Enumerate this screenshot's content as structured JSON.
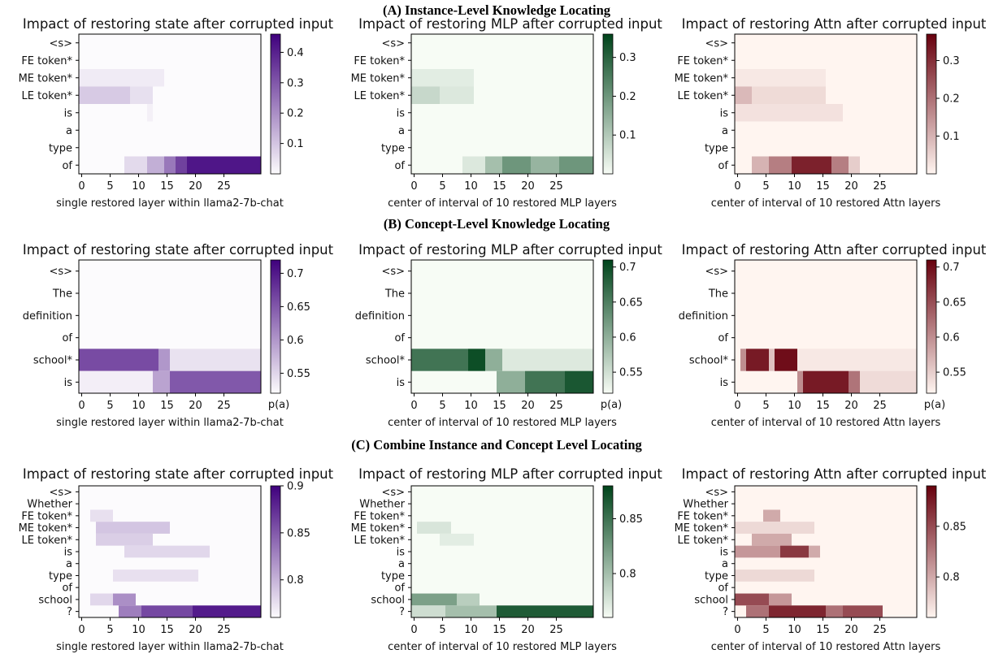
{
  "sections": [
    "(A) Instance-Level Knowledge Locating",
    "(B) Concept-Level Knowledge Locating",
    "(C) Combine Instance and Concept Level Locating"
  ],
  "colormaps": {
    "state": {
      "low": "#fcfbfd",
      "high": "#3f007d"
    },
    "mlp": {
      "low": "#f7fcf5",
      "high": "#00441b"
    },
    "attn": {
      "low": "#fff5f0",
      "high": "#67000d"
    }
  },
  "chart_data": [
    {
      "type": "heatmap",
      "row": 0,
      "kind": "state",
      "title": "Impact of restoring state after corrupted input",
      "xlabel": "single restored layer within llama2-7b-chat",
      "rows": [
        "<s>",
        "FE token*",
        "ME token*",
        "LE token*",
        "is",
        "a",
        "type",
        "of"
      ],
      "xticks": [
        0,
        5,
        10,
        15,
        20,
        25
      ],
      "ncols": 32,
      "clim": [
        0.0,
        0.46
      ],
      "cbar_ticks": [
        0.1,
        0.2,
        0.3,
        0.4
      ],
      "cbar_label": "",
      "cells": [
        {
          "row": "ME token*",
          "x": [
            0,
            14
          ],
          "v": 0.03
        },
        {
          "row": "LE token*",
          "x": [
            0,
            8
          ],
          "v": 0.09
        },
        {
          "row": "LE token*",
          "x": [
            9,
            12
          ],
          "v": 0.05
        },
        {
          "row": "is",
          "x": [
            12,
            12
          ],
          "v": 0.02
        },
        {
          "row": "of",
          "x": [
            8,
            11
          ],
          "v": 0.06
        },
        {
          "row": "of",
          "x": [
            12,
            14
          ],
          "v": 0.14
        },
        {
          "row": "of",
          "x": [
            15,
            16
          ],
          "v": 0.24
        },
        {
          "row": "of",
          "x": [
            17,
            18
          ],
          "v": 0.34
        },
        {
          "row": "of",
          "x": [
            19,
            31
          ],
          "v": 0.42
        }
      ]
    },
    {
      "type": "heatmap",
      "row": 0,
      "kind": "mlp",
      "title": "Impact of restoring MLP after corrupted input",
      "xlabel": "center of interval of 10 restored MLP layers",
      "rows": [
        "<s>",
        "FE token*",
        "ME token*",
        "LE token*",
        "is",
        "a",
        "type",
        "of"
      ],
      "xticks": [
        0,
        5,
        10,
        15,
        20,
        25
      ],
      "ncols": 32,
      "clim": [
        0.0,
        0.36
      ],
      "cbar_ticks": [
        0.1,
        0.2,
        0.3
      ],
      "cbar_label": "",
      "cells": [
        {
          "row": "ME token*",
          "x": [
            0,
            10
          ],
          "v": 0.03
        },
        {
          "row": "LE token*",
          "x": [
            0,
            4
          ],
          "v": 0.07
        },
        {
          "row": "LE token*",
          "x": [
            5,
            10
          ],
          "v": 0.04
        },
        {
          "row": "of",
          "x": [
            9,
            12
          ],
          "v": 0.04
        },
        {
          "row": "of",
          "x": [
            13,
            15
          ],
          "v": 0.12
        },
        {
          "row": "of",
          "x": [
            16,
            20
          ],
          "v": 0.2
        },
        {
          "row": "of",
          "x": [
            21,
            25
          ],
          "v": 0.14
        },
        {
          "row": "of",
          "x": [
            26,
            31
          ],
          "v": 0.2
        }
      ]
    },
    {
      "type": "heatmap",
      "row": 0,
      "kind": "attn",
      "title": "Impact of restoring Attn after corrupted input",
      "xlabel": "center of interval of 10 restored Attn layers",
      "rows": [
        "<s>",
        "FE token*",
        "ME token*",
        "LE token*",
        "is",
        "a",
        "type",
        "of"
      ],
      "xticks": [
        0,
        5,
        10,
        15,
        20,
        25
      ],
      "ncols": 32,
      "clim": [
        0.0,
        0.37
      ],
      "cbar_ticks": [
        0.1,
        0.2,
        0.3
      ],
      "cbar_label": "",
      "cells": [
        {
          "row": "ME token*",
          "x": [
            0,
            15
          ],
          "v": 0.02
        },
        {
          "row": "LE token*",
          "x": [
            0,
            2
          ],
          "v": 0.09
        },
        {
          "row": "LE token*",
          "x": [
            3,
            15
          ],
          "v": 0.04
        },
        {
          "row": "is",
          "x": [
            0,
            18
          ],
          "v": 0.03
        },
        {
          "row": "of",
          "x": [
            3,
            5
          ],
          "v": 0.1
        },
        {
          "row": "of",
          "x": [
            6,
            9
          ],
          "v": 0.18
        },
        {
          "row": "of",
          "x": [
            10,
            16
          ],
          "v": 0.32
        },
        {
          "row": "of",
          "x": [
            17,
            19
          ],
          "v": 0.18
        },
        {
          "row": "of",
          "x": [
            20,
            21
          ],
          "v": 0.06
        }
      ]
    },
    {
      "type": "heatmap",
      "row": 1,
      "kind": "state",
      "title": "Impact of restoring state after corrupted input",
      "xlabel": "single restored layer within llama2-7b-chat",
      "rows": [
        "<s>",
        "The",
        "definition",
        "of",
        "school*",
        "is"
      ],
      "xticks": [
        0,
        5,
        10,
        15,
        20,
        25
      ],
      "ncols": 32,
      "clim": [
        0.52,
        0.72
      ],
      "cbar_ticks": [
        0.55,
        0.6,
        0.65,
        0.7
      ],
      "cbar_label": "p(a)",
      "cells": [
        {
          "row": "school*",
          "x": [
            0,
            13
          ],
          "v": 0.66
        },
        {
          "row": "school*",
          "x": [
            14,
            15
          ],
          "v": 0.6
        },
        {
          "row": "school*",
          "x": [
            16,
            31
          ],
          "v": 0.54
        },
        {
          "row": "is",
          "x": [
            0,
            12
          ],
          "v": 0.53
        },
        {
          "row": "is",
          "x": [
            13,
            15
          ],
          "v": 0.59
        },
        {
          "row": "is",
          "x": [
            16,
            31
          ],
          "v": 0.65
        }
      ]
    },
    {
      "type": "heatmap",
      "row": 1,
      "kind": "mlp",
      "title": "Impact of restoring MLP after corrupted input",
      "xlabel": "center of interval of 10 restored MLP layers",
      "rows": [
        "<s>",
        "The",
        "definition",
        "of",
        "school*",
        "is"
      ],
      "xticks": [
        0,
        5,
        10,
        15,
        20,
        25
      ],
      "ncols": 32,
      "clim": [
        0.52,
        0.71
      ],
      "cbar_ticks": [
        0.55,
        0.6,
        0.65,
        0.7
      ],
      "cbar_label": "p(a)",
      "cells": [
        {
          "row": "school*",
          "x": [
            0,
            9
          ],
          "v": 0.66
        },
        {
          "row": "school*",
          "x": [
            10,
            12
          ],
          "v": 0.7
        },
        {
          "row": "school*",
          "x": [
            13,
            15
          ],
          "v": 0.6
        },
        {
          "row": "school*",
          "x": [
            16,
            31
          ],
          "v": 0.54
        },
        {
          "row": "is",
          "x": [
            15,
            19
          ],
          "v": 0.6
        },
        {
          "row": "is",
          "x": [
            20,
            26
          ],
          "v": 0.66
        },
        {
          "row": "is",
          "x": [
            27,
            31
          ],
          "v": 0.69
        }
      ]
    },
    {
      "type": "heatmap",
      "row": 1,
      "kind": "attn",
      "title": "Impact of restoring Attn after corrupted input",
      "xlabel": "center of interval of 10 restored Attn layers",
      "rows": [
        "<s>",
        "The",
        "definition",
        "of",
        "school*",
        "is"
      ],
      "xticks": [
        0,
        5,
        10,
        15,
        20,
        25
      ],
      "ncols": 32,
      "clim": [
        0.52,
        0.71
      ],
      "cbar_ticks": [
        0.55,
        0.6,
        0.65,
        0.7
      ],
      "cbar_label": "p(a)",
      "cells": [
        {
          "row": "school*",
          "x": [
            1,
            1
          ],
          "v": 0.6
        },
        {
          "row": "school*",
          "x": [
            2,
            5
          ],
          "v": 0.69
        },
        {
          "row": "school*",
          "x": [
            6,
            6
          ],
          "v": 0.56
        },
        {
          "row": "school*",
          "x": [
            7,
            10
          ],
          "v": 0.7
        },
        {
          "row": "school*",
          "x": [
            11,
            31
          ],
          "v": 0.53
        },
        {
          "row": "is",
          "x": [
            11,
            11
          ],
          "v": 0.6
        },
        {
          "row": "is",
          "x": [
            12,
            19
          ],
          "v": 0.69
        },
        {
          "row": "is",
          "x": [
            20,
            21
          ],
          "v": 0.62
        },
        {
          "row": "is",
          "x": [
            22,
            31
          ],
          "v": 0.54
        }
      ]
    },
    {
      "type": "heatmap",
      "row": 2,
      "kind": "state",
      "title": "Impact of restoring state after corrupted input",
      "xlabel": "single restored layer within llama2-7b-chat",
      "rows": [
        "<s>",
        "Whether",
        "FE token*",
        "ME token*",
        "LE token*",
        "is",
        "a",
        "type",
        "of",
        "school",
        "?"
      ],
      "xticks": [
        0,
        5,
        10,
        15,
        20,
        25
      ],
      "ncols": 32,
      "clim": [
        0.76,
        0.9
      ],
      "cbar_ticks": [
        0.8,
        0.85,
        0.9
      ],
      "cbar_label": "",
      "cells": [
        {
          "row": "FE token*",
          "x": [
            2,
            5
          ],
          "v": 0.775
        },
        {
          "row": "ME token*",
          "x": [
            3,
            15
          ],
          "v": 0.79
        },
        {
          "row": "LE token*",
          "x": [
            3,
            12
          ],
          "v": 0.785
        },
        {
          "row": "is",
          "x": [
            8,
            22
          ],
          "v": 0.78
        },
        {
          "row": "type",
          "x": [
            6,
            20
          ],
          "v": 0.775
        },
        {
          "row": "school",
          "x": [
            2,
            5
          ],
          "v": 0.78
        },
        {
          "row": "school",
          "x": [
            6,
            9
          ],
          "v": 0.82
        },
        {
          "row": "?",
          "x": [
            7,
            10
          ],
          "v": 0.83
        },
        {
          "row": "?",
          "x": [
            11,
            19
          ],
          "v": 0.86
        },
        {
          "row": "?",
          "x": [
            20,
            31
          ],
          "v": 0.885
        }
      ]
    },
    {
      "type": "heatmap",
      "row": 2,
      "kind": "mlp",
      "title": "Impact of restoring MLP after corrupted input",
      "xlabel": "center of interval of 10 restored MLP layers",
      "rows": [
        "<s>",
        "Whether",
        "FE token*",
        "ME token*",
        "LE token*",
        "is",
        "a",
        "type",
        "of",
        "school",
        "?"
      ],
      "xticks": [
        0,
        5,
        10,
        15,
        20,
        25
      ],
      "ncols": 32,
      "clim": [
        0.76,
        0.88
      ],
      "cbar_ticks": [
        0.8,
        0.85
      ],
      "cbar_label": "",
      "cells": [
        {
          "row": "ME token*",
          "x": [
            1,
            6
          ],
          "v": 0.775
        },
        {
          "row": "LE token*",
          "x": [
            5,
            10
          ],
          "v": 0.77
        },
        {
          "row": "school",
          "x": [
            0,
            7
          ],
          "v": 0.82
        },
        {
          "row": "school",
          "x": [
            8,
            11
          ],
          "v": 0.79
        },
        {
          "row": "?",
          "x": [
            0,
            5
          ],
          "v": 0.78
        },
        {
          "row": "?",
          "x": [
            6,
            14
          ],
          "v": 0.8
        },
        {
          "row": "?",
          "x": [
            15,
            31
          ],
          "v": 0.865
        }
      ]
    },
    {
      "type": "heatmap",
      "row": 2,
      "kind": "attn",
      "title": "Impact of restoring Attn after corrupted input",
      "xlabel": "center of interval of 10 restored Attn layers",
      "rows": [
        "<s>",
        "Whether",
        "FE token*",
        "ME token*",
        "LE token*",
        "is",
        "a",
        "type",
        "of",
        "school",
        "?"
      ],
      "xticks": [
        0,
        5,
        10,
        15,
        20,
        25
      ],
      "ncols": 32,
      "clim": [
        0.76,
        0.89
      ],
      "cbar_ticks": [
        0.8,
        0.85
      ],
      "cbar_label": "",
      "cells": [
        {
          "row": "FE token*",
          "x": [
            5,
            7
          ],
          "v": 0.8
        },
        {
          "row": "ME token*",
          "x": [
            0,
            13
          ],
          "v": 0.775
        },
        {
          "row": "LE token*",
          "x": [
            3,
            9
          ],
          "v": 0.8
        },
        {
          "row": "is",
          "x": [
            0,
            7
          ],
          "v": 0.81
        },
        {
          "row": "is",
          "x": [
            8,
            12
          ],
          "v": 0.86
        },
        {
          "row": "is",
          "x": [
            13,
            14
          ],
          "v": 0.8
        },
        {
          "row": "type",
          "x": [
            0,
            13
          ],
          "v": 0.775
        },
        {
          "row": "school",
          "x": [
            0,
            5
          ],
          "v": 0.85
        },
        {
          "row": "school",
          "x": [
            6,
            9
          ],
          "v": 0.81
        },
        {
          "row": "?",
          "x": [
            2,
            5
          ],
          "v": 0.83
        },
        {
          "row": "?",
          "x": [
            6,
            15
          ],
          "v": 0.87
        },
        {
          "row": "?",
          "x": [
            16,
            18
          ],
          "v": 0.83
        },
        {
          "row": "?",
          "x": [
            19,
            25
          ],
          "v": 0.85
        }
      ]
    }
  ]
}
